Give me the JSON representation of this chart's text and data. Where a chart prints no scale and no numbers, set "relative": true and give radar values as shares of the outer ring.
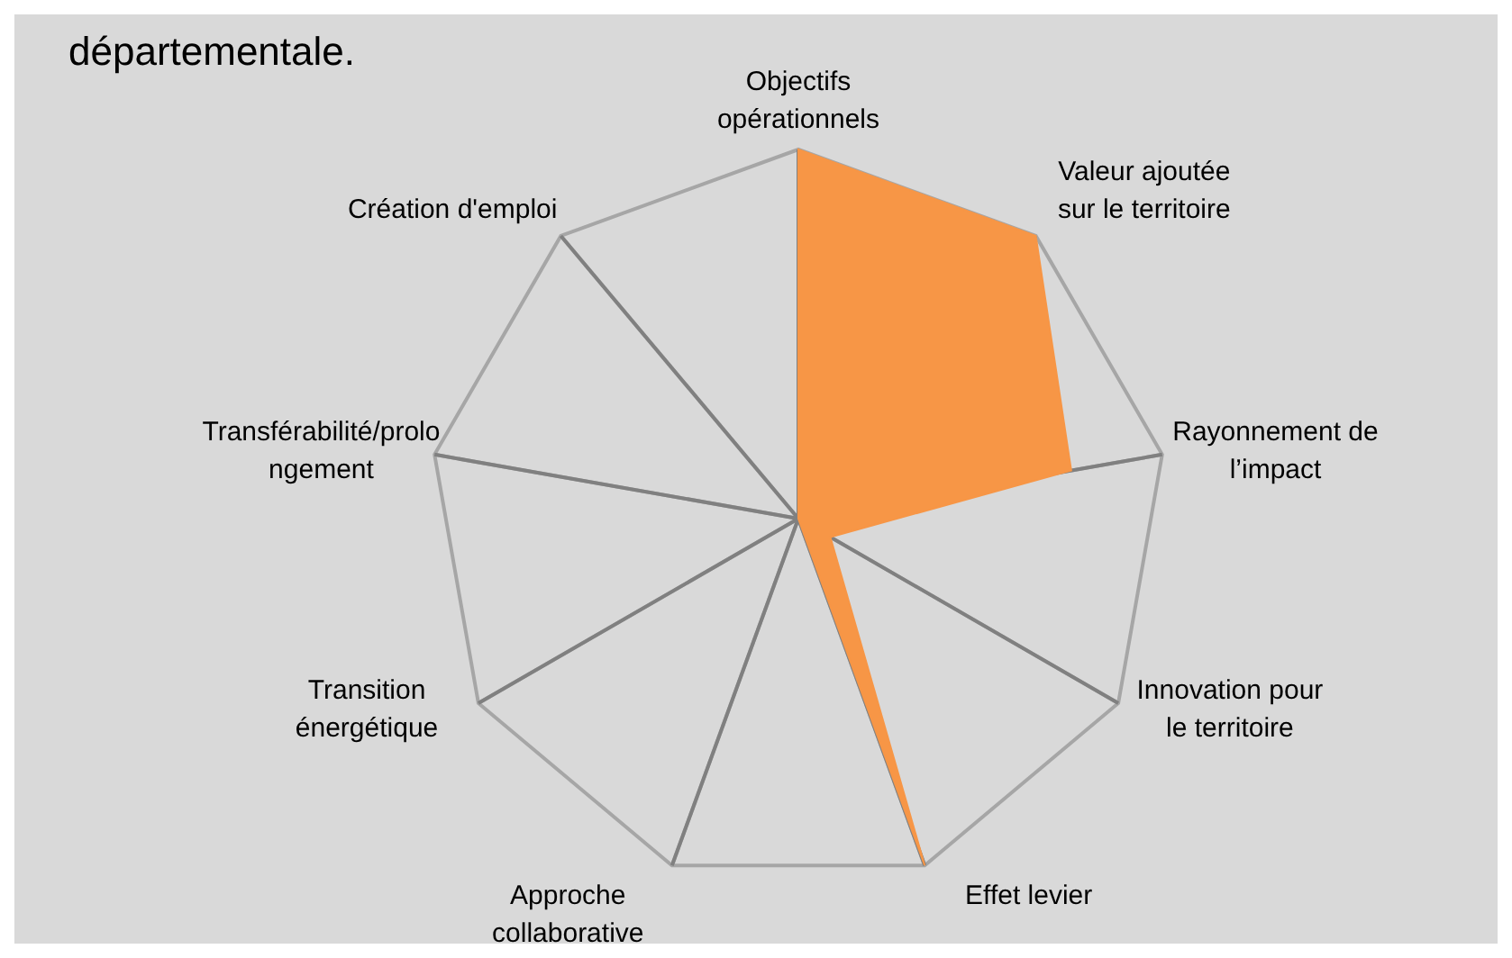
{
  "chart_data": {
    "type": "radar",
    "title": "départementale.",
    "relative": true,
    "categories": [
      "Objectifs opérationnels",
      "Valeur ajoutée sur le territoire",
      "Rayonnement de l’impact",
      "Innovation pour le territoire",
      "Effet levier",
      "Approche collaborative",
      "Transition énergétique",
      "Transférabilité/prolongement",
      "Création d'emploi"
    ],
    "series": [
      {
        "color": "#f79646",
        "values": [
          1,
          1,
          0.75,
          0.1,
          1,
          0,
          0,
          0,
          0
        ]
      }
    ],
    "grid": true,
    "legend": false
  }
}
